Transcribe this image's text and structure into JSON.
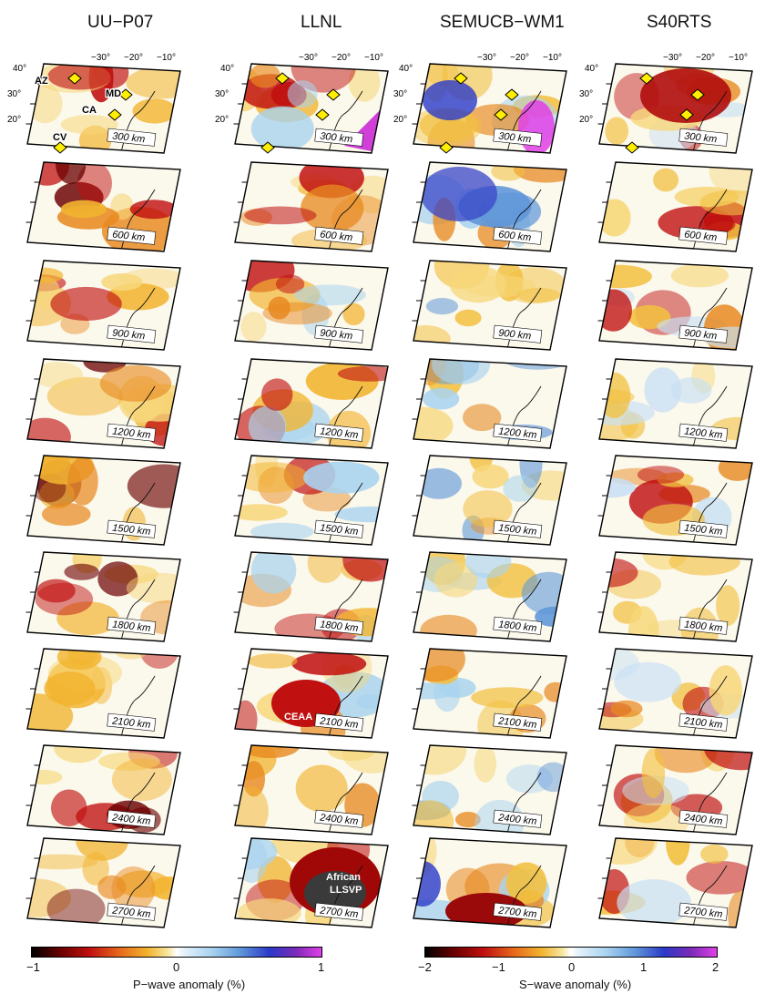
{
  "columns": [
    {
      "title": "UU−P07"
    },
    {
      "title": "LLNL"
    },
    {
      "title": "SEMUCB−WM1"
    },
    {
      "title": "S40RTS"
    }
  ],
  "depth_labels": [
    "300 km",
    "600 km",
    "900 km",
    "1200 km",
    "1500 km",
    "1800 km",
    "2100 km",
    "2400 km",
    "2700 km"
  ],
  "lat_ticks": [
    "40°",
    "30°",
    "20°"
  ],
  "lon_ticks": [
    "−30°",
    "−20°",
    "−10°"
  ],
  "hotspots": [
    {
      "label": "AZ"
    },
    {
      "label": "MD"
    },
    {
      "label": "CA"
    },
    {
      "label": "CV"
    }
  ],
  "annotations": {
    "ceaa": "CEAA",
    "llsvp_line1": "African",
    "llsvp_line2": "LLSVP"
  },
  "legends": {
    "p_wave": {
      "min": "−1",
      "mid": "0",
      "max": "1",
      "label": "P−wave anomaly (%)"
    },
    "s_wave": {
      "min": "−2",
      "m1": "−1",
      "mid": "0",
      "p1": "1",
      "max": "2",
      "label": "S−wave anomaly (%)"
    }
  },
  "colors": {
    "hotspot_fill": "#ffee00",
    "neg_strong": "#6b0000",
    "neg": "#e6661a",
    "neutral": "#ffffff",
    "pos": "#5f97d9",
    "pos_strong": "#e040e8"
  }
}
